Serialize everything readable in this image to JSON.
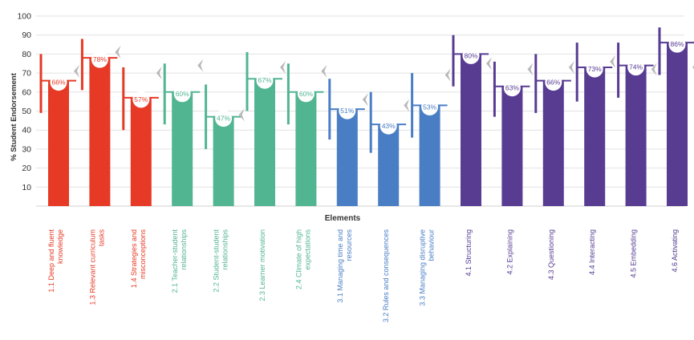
{
  "chart_data": {
    "type": "bar",
    "ylabel": "% Student Endorsement",
    "xlabel": "Elements",
    "ylim": [
      0,
      100
    ],
    "yticks": [
      10,
      20,
      30,
      40,
      50,
      60,
      70,
      80,
      90,
      100
    ],
    "grid": true,
    "categories": [
      "1.1 Deep and fluent knowledge",
      "1.3 Relevant curriculum tasks",
      "1.4 Strategies and misconceptions",
      "2.1 Teacher-student relationships",
      "2.2 Student-student relationships",
      "2.3 Learner motivation",
      "2.4 Climate of high expectations",
      "3.1 Managing time and resources",
      "3.2 Rules and consequences",
      "3.3 Managing disruptive behaviour",
      "4.1 Structuring",
      "4.2 Explaining",
      "4.3 Questioning",
      "4.4 Interacting",
      "4.5 Embedding",
      "4.6 Activating"
    ],
    "label_lines": [
      [
        "1.1 Deep and fluent",
        "knowledge"
      ],
      [
        "1.3 Relevant curriculum",
        "tasks"
      ],
      [
        "1.4 Strategies and",
        "misconceptions"
      ],
      [
        "2.1 Teacher-student",
        "relationships"
      ],
      [
        "2.2 Student-student",
        "relationships"
      ],
      [
        "2.3 Learner motivation"
      ],
      [
        "2.4 Climate of high",
        "expectations"
      ],
      [
        "3.1 Managing time and",
        "resources"
      ],
      [
        "3.2 Rules and consequences"
      ],
      [
        "3.3 Managing disruptive",
        "behaviour"
      ],
      [
        "4.1 Structuring"
      ],
      [
        "4.2 Explaining"
      ],
      [
        "4.3 Questioning"
      ],
      [
        "4.4 Interacting"
      ],
      [
        "4.5 Embedding"
      ],
      [
        "4.6 Activating"
      ]
    ],
    "values": [
      66,
      78,
      57,
      60,
      47,
      67,
      60,
      51,
      43,
      53,
      80,
      63,
      66,
      73,
      74,
      86
    ],
    "data_labels": [
      "66%",
      "78%",
      "57%",
      "60%",
      "47%",
      "67%",
      "60%",
      "51%",
      "43%",
      "53%",
      "80%",
      "63%",
      "66%",
      "73%",
      "74%",
      "86%"
    ],
    "interval_low": [
      49,
      61,
      40,
      43,
      30,
      50,
      43,
      35,
      28,
      36,
      63,
      47,
      49,
      55,
      57,
      69
    ],
    "interval_high": [
      80,
      88,
      73,
      75,
      64,
      81,
      75,
      67,
      60,
      70,
      90,
      76,
      80,
      86,
      86,
      94
    ],
    "marker_values": [
      71,
      81,
      70,
      74,
      48,
      73,
      71,
      56,
      53,
      69,
      75,
      72,
      73,
      76,
      72,
      73
    ],
    "groups": [
      0,
      0,
      0,
      1,
      1,
      1,
      1,
      2,
      2,
      2,
      3,
      3,
      3,
      3,
      3,
      3
    ],
    "group_colors": [
      "#e63a26",
      "#52b592",
      "#4a7ec4",
      "#573c92"
    ],
    "marker_color": "#b8b8b8",
    "grid_color": "#e2e2e2"
  }
}
